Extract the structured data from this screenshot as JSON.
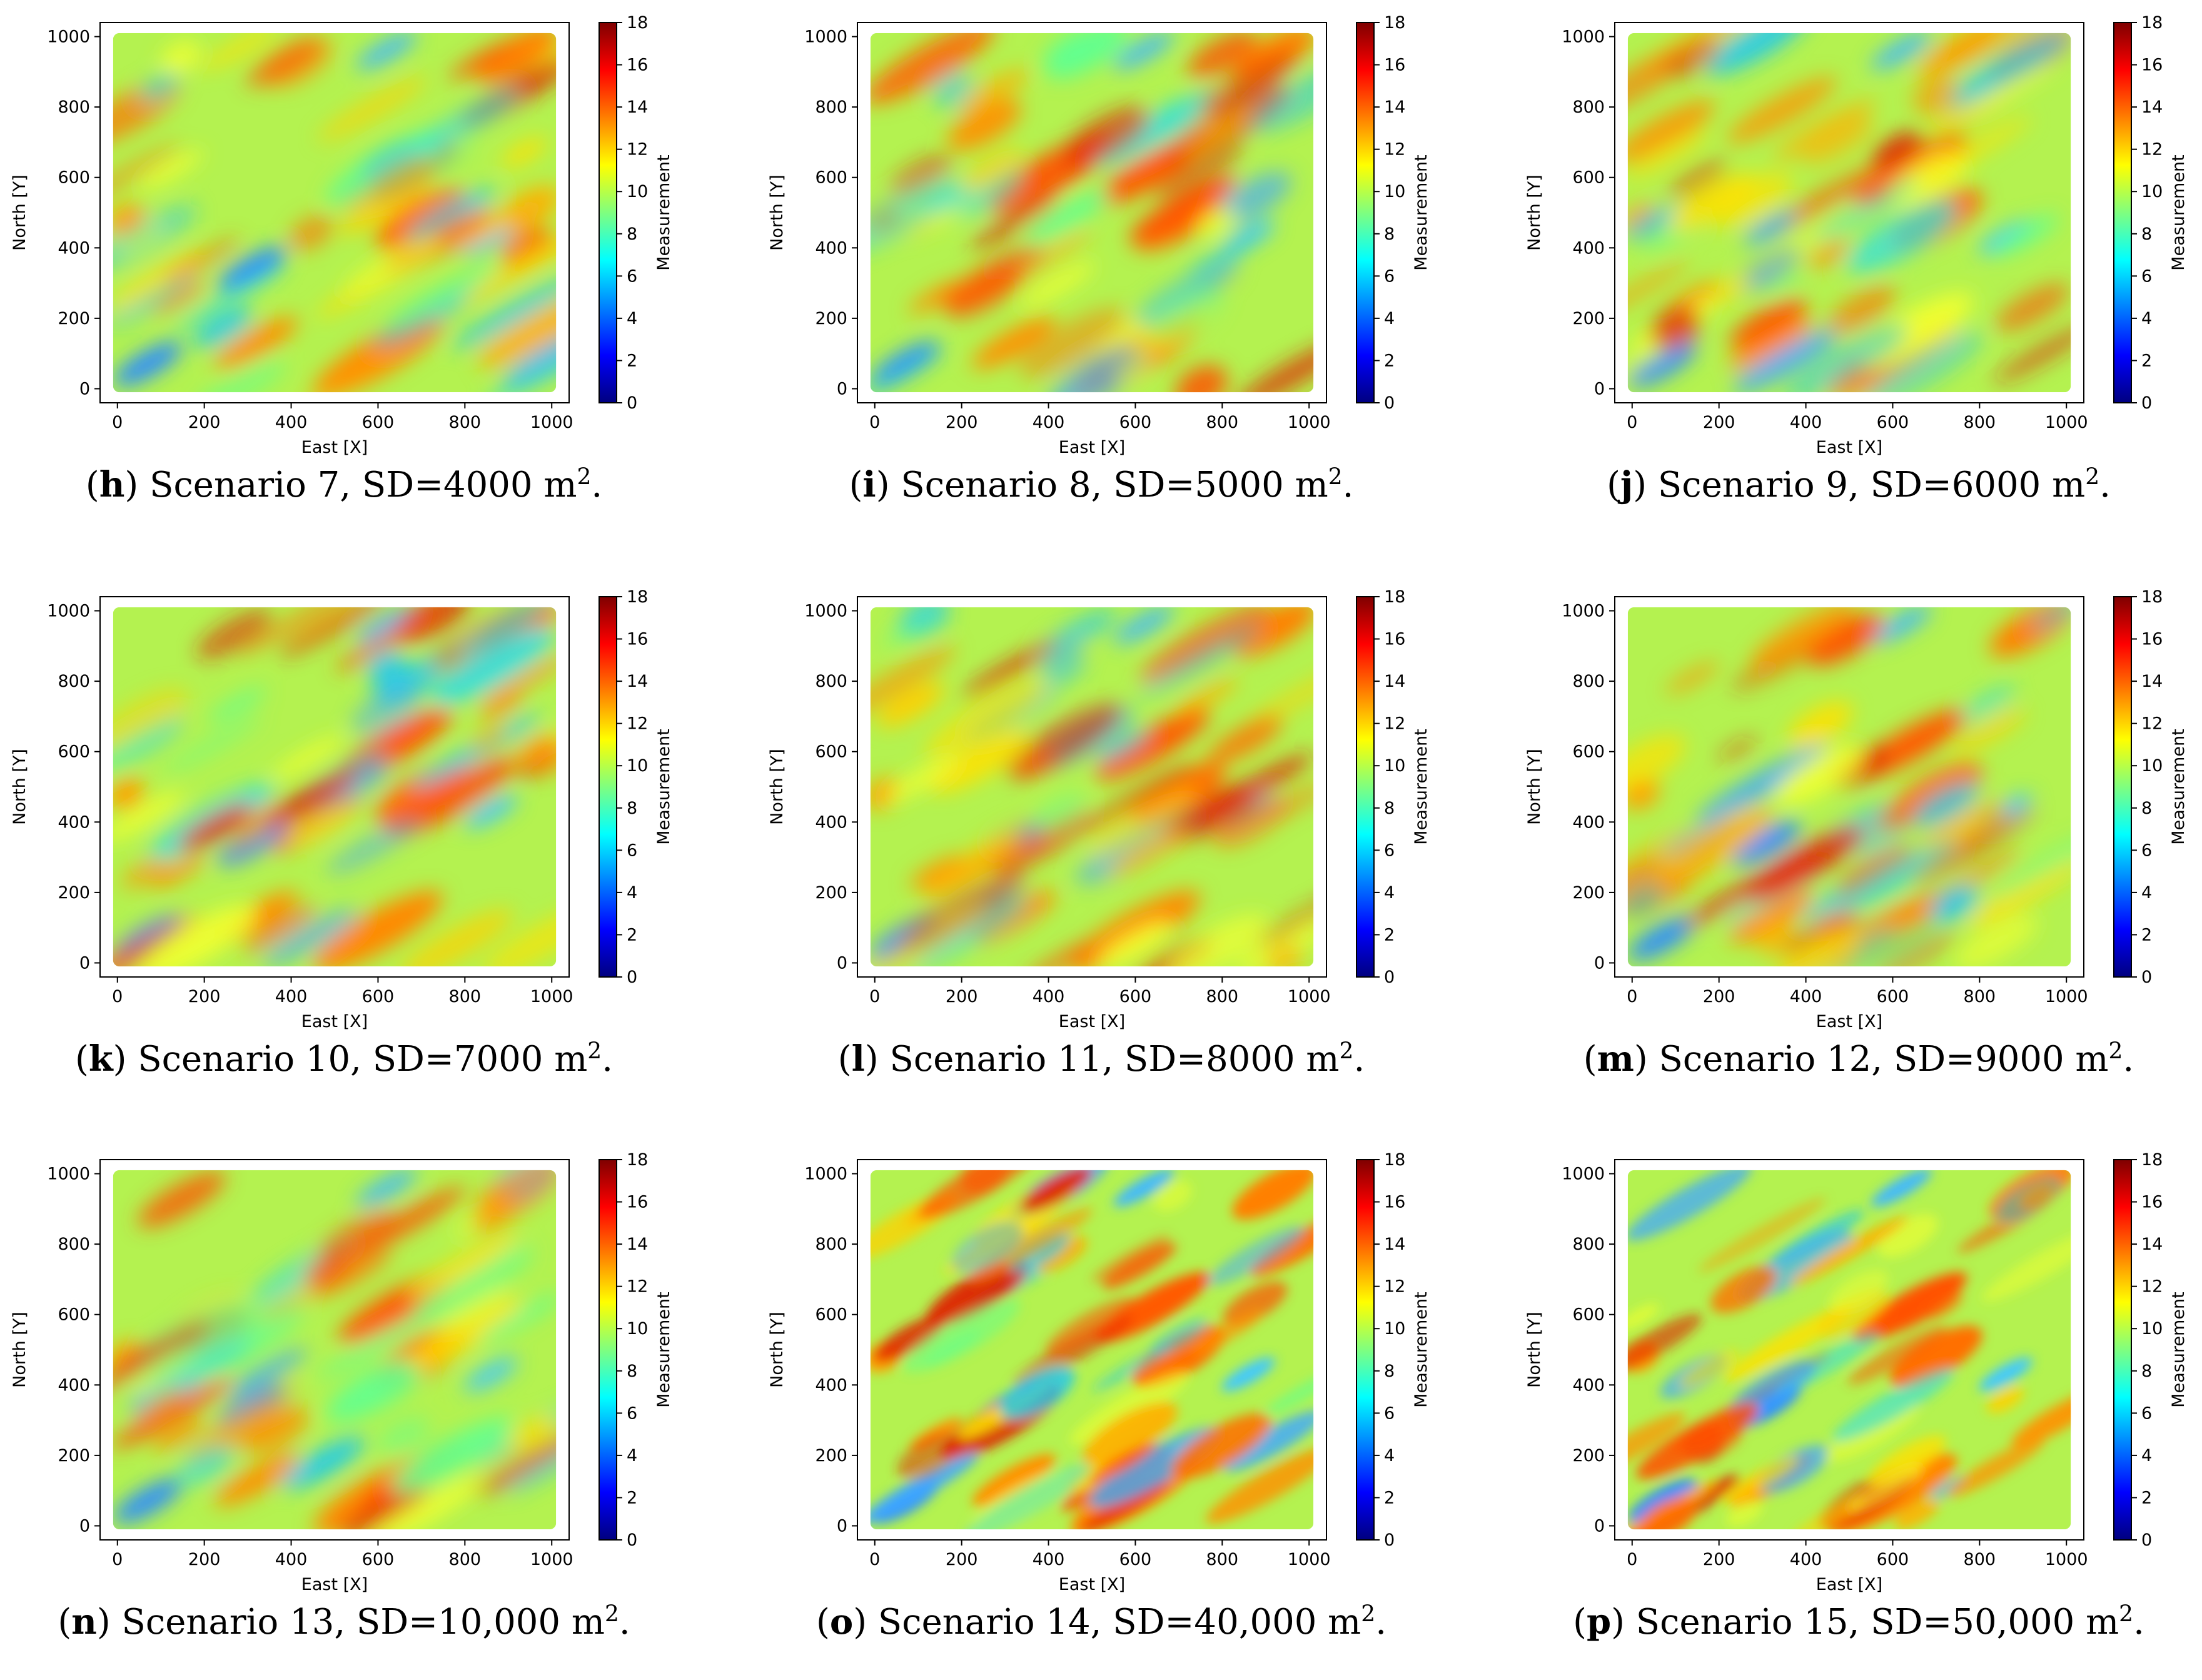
{
  "figure": {
    "colormap": "jet",
    "colors": {
      "jet": [
        "#00007f",
        "#0000ff",
        "#007fff",
        "#00ffff",
        "#7fff7f",
        "#ffff00",
        "#ff7f00",
        "#ff0000",
        "#7f0000"
      ]
    }
  },
  "chart_data": [
    {
      "type": "heatmap",
      "panel_letter": "h",
      "caption": "Scenario 7, SD=4000 m",
      "caption_sup": "2",
      "caption_end": ".",
      "xlabel": "East [X]",
      "ylabel": "North [Y]",
      "colorbar_label": "Measurement",
      "xlim": [
        -40,
        1040
      ],
      "ylim": [
        -40,
        1040
      ],
      "xticks": [
        0,
        200,
        400,
        600,
        800,
        1000
      ],
      "yticks": [
        0,
        200,
        400,
        600,
        800,
        1000
      ],
      "clim": [
        0,
        18
      ],
      "cticks": [
        0,
        2,
        4,
        6,
        8,
        10,
        12,
        14,
        16,
        18
      ],
      "grid": false
    },
    {
      "type": "heatmap",
      "panel_letter": "i",
      "caption": "Scenario 8, SD=5000 m",
      "caption_sup": "2",
      "caption_end": ".",
      "xlabel": "East [X]",
      "ylabel": "North [Y]",
      "colorbar_label": "Measurement",
      "xlim": [
        -40,
        1040
      ],
      "ylim": [
        -40,
        1040
      ],
      "xticks": [
        0,
        200,
        400,
        600,
        800,
        1000
      ],
      "yticks": [
        0,
        200,
        400,
        600,
        800,
        1000
      ],
      "clim": [
        0,
        18
      ],
      "cticks": [
        0,
        2,
        4,
        6,
        8,
        10,
        12,
        14,
        16,
        18
      ],
      "grid": false
    },
    {
      "type": "heatmap",
      "panel_letter": "j",
      "caption": "Scenario 9, SD=6000 m",
      "caption_sup": "2",
      "caption_end": ".",
      "xlabel": "East [X]",
      "ylabel": "North [Y]",
      "colorbar_label": "Measurement",
      "xlim": [
        -40,
        1040
      ],
      "ylim": [
        -40,
        1040
      ],
      "xticks": [
        0,
        200,
        400,
        600,
        800,
        1000
      ],
      "yticks": [
        0,
        200,
        400,
        600,
        800,
        1000
      ],
      "clim": [
        0,
        18
      ],
      "cticks": [
        0,
        2,
        4,
        6,
        8,
        10,
        12,
        14,
        16,
        18
      ],
      "grid": false
    },
    {
      "type": "heatmap",
      "panel_letter": "k",
      "caption": "Scenario 10, SD=7000 m",
      "caption_sup": "2",
      "caption_end": ".",
      "xlabel": "East [X]",
      "ylabel": "North [Y]",
      "colorbar_label": "Measurement",
      "xlim": [
        -40,
        1040
      ],
      "ylim": [
        -40,
        1040
      ],
      "xticks": [
        0,
        200,
        400,
        600,
        800,
        1000
      ],
      "yticks": [
        0,
        200,
        400,
        600,
        800,
        1000
      ],
      "clim": [
        0,
        18
      ],
      "cticks": [
        0,
        2,
        4,
        6,
        8,
        10,
        12,
        14,
        16,
        18
      ],
      "grid": false
    },
    {
      "type": "heatmap",
      "panel_letter": "l",
      "caption": "Scenario 11, SD=8000 m",
      "caption_sup": "2",
      "caption_end": ".",
      "xlabel": "East [X]",
      "ylabel": "North [Y]",
      "colorbar_label": "Measurement",
      "xlim": [
        -40,
        1040
      ],
      "ylim": [
        -40,
        1040
      ],
      "xticks": [
        0,
        200,
        400,
        600,
        800,
        1000
      ],
      "yticks": [
        0,
        200,
        400,
        600,
        800,
        1000
      ],
      "clim": [
        0,
        18
      ],
      "cticks": [
        0,
        2,
        4,
        6,
        8,
        10,
        12,
        14,
        16,
        18
      ],
      "grid": false
    },
    {
      "type": "heatmap",
      "panel_letter": "m",
      "caption": "Scenario 12, SD=9000 m",
      "caption_sup": "2",
      "caption_end": ".",
      "xlabel": "East [X]",
      "ylabel": "North [Y]",
      "colorbar_label": "Measurement",
      "xlim": [
        -40,
        1040
      ],
      "ylim": [
        -40,
        1040
      ],
      "xticks": [
        0,
        200,
        400,
        600,
        800,
        1000
      ],
      "yticks": [
        0,
        200,
        400,
        600,
        800,
        1000
      ],
      "clim": [
        0,
        18
      ],
      "cticks": [
        0,
        2,
        4,
        6,
        8,
        10,
        12,
        14,
        16,
        18
      ],
      "grid": false
    },
    {
      "type": "heatmap",
      "panel_letter": "n",
      "caption": "Scenario 13, SD=10,000 m",
      "caption_sup": "2",
      "caption_end": ".",
      "xlabel": "East [X]",
      "ylabel": "North [Y]",
      "colorbar_label": "Measurement",
      "xlim": [
        -40,
        1040
      ],
      "ylim": [
        -40,
        1040
      ],
      "xticks": [
        0,
        200,
        400,
        600,
        800,
        1000
      ],
      "yticks": [
        0,
        200,
        400,
        600,
        800,
        1000
      ],
      "clim": [
        0,
        18
      ],
      "cticks": [
        0,
        2,
        4,
        6,
        8,
        10,
        12,
        14,
        16,
        18
      ],
      "grid": false
    },
    {
      "type": "heatmap",
      "panel_letter": "o",
      "caption": "Scenario 14, SD=40,000 m",
      "caption_sup": "2",
      "caption_end": ".",
      "xlabel": "East [X]",
      "ylabel": "North [Y]",
      "colorbar_label": "Measurement",
      "xlim": [
        -40,
        1040
      ],
      "ylim": [
        -40,
        1040
      ],
      "xticks": [
        0,
        200,
        400,
        600,
        800,
        1000
      ],
      "yticks": [
        0,
        200,
        400,
        600,
        800,
        1000
      ],
      "clim": [
        0,
        18
      ],
      "cticks": [
        0,
        2,
        4,
        6,
        8,
        10,
        12,
        14,
        16,
        18
      ],
      "grid": false
    },
    {
      "type": "heatmap",
      "panel_letter": "p",
      "caption": "Scenario 15, SD=50,000 m",
      "caption_sup": "2",
      "caption_end": ".",
      "xlabel": "East [X]",
      "ylabel": "North [Y]",
      "colorbar_label": "Measurement",
      "xlim": [
        -40,
        1040
      ],
      "ylim": [
        -40,
        1040
      ],
      "xticks": [
        0,
        200,
        400,
        600,
        800,
        1000
      ],
      "yticks": [
        0,
        200,
        400,
        600,
        800,
        1000
      ],
      "clim": [
        0,
        18
      ],
      "cticks": [
        0,
        2,
        4,
        6,
        8,
        10,
        12,
        14,
        16,
        18
      ],
      "grid": false
    }
  ]
}
